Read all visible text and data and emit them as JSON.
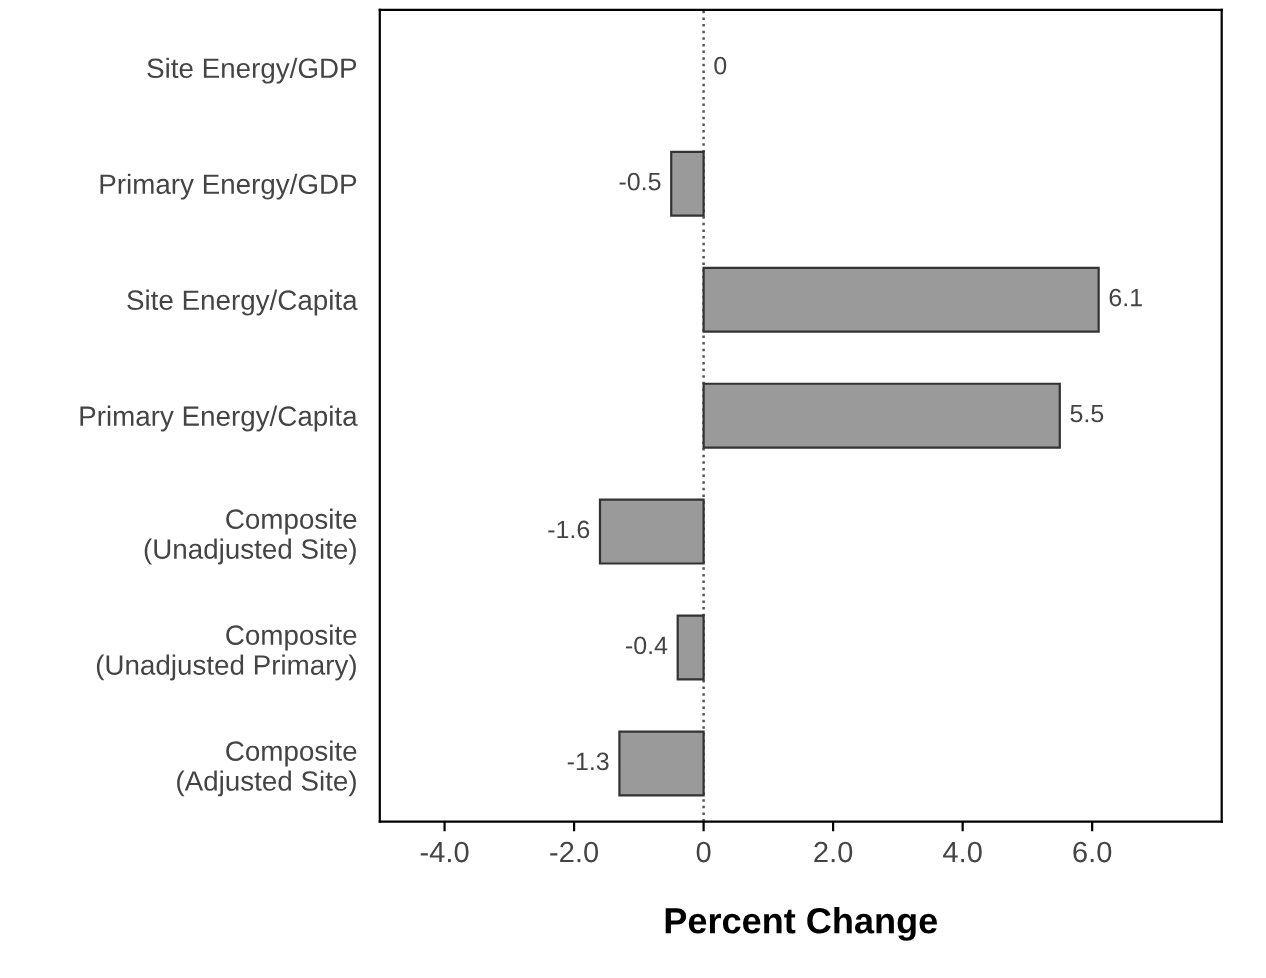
{
  "chart_data": {
    "type": "bar",
    "orientation": "horizontal",
    "xlabel": "Percent Change",
    "categories": [
      "Site Energy/GDP",
      "Primary Energy/GDP",
      "Site Energy/Capita",
      "Primary Energy/Capita",
      "Composite\n(Unadjusted Site)",
      "Composite\n(Unadjusted Primary)",
      "Composite\n(Adjusted Site)"
    ],
    "values": [
      0,
      -0.5,
      6.1,
      5.5,
      -1.6,
      -0.4,
      -1.3
    ],
    "value_labels": [
      "0",
      "-0.5",
      "6.1",
      "5.5",
      "-1.6",
      "-0.4",
      "-1.3"
    ],
    "color": "#9a9a9a",
    "xlim": [
      -5,
      8
    ],
    "xticks": [
      {
        "value": -4,
        "label": "-4.0"
      },
      {
        "value": -2,
        "label": "-2.0"
      },
      0,
      {
        "value": 2,
        "label": "2.0"
      },
      {
        "value": 4,
        "label": "4.0"
      },
      {
        "value": 6,
        "label": "6.0"
      }
    ],
    "ref_lines": [
      {
        "axis": "x",
        "value": 0,
        "line_style": "dotted",
        "color": "#555555"
      }
    ],
    "grid": false,
    "legend": false
  }
}
